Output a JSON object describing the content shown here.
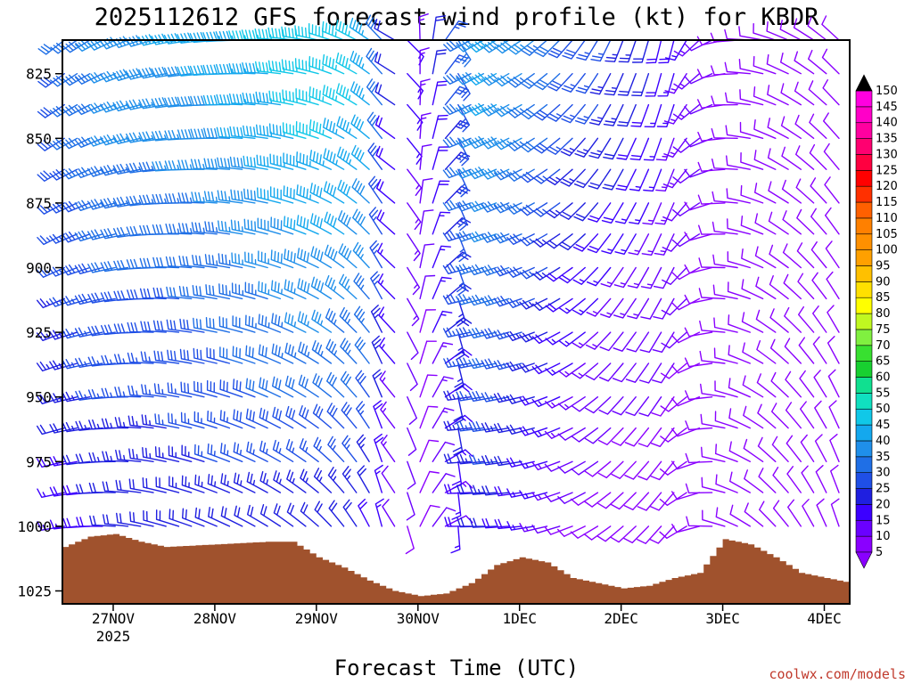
{
  "chart_data": {
    "type": "wind-barb-time-height",
    "title": "2025112612 GFS forecast wind profile (kt) for KBDR",
    "xlabel": "Forecast Time (UTC)",
    "ylabel": "",
    "credit": "coolwx.com/models",
    "xlim": [
      0,
      7.75
    ],
    "ylim": [
      1030,
      812
    ],
    "x_ticks": [
      {
        "value": 0.5,
        "label": "27NOV",
        "sublabel": "2025"
      },
      {
        "value": 1.5,
        "label": "28NOV"
      },
      {
        "value": 2.5,
        "label": "29NOV"
      },
      {
        "value": 3.5,
        "label": "30NOV"
      },
      {
        "value": 4.5,
        "label": "1DEC"
      },
      {
        "value": 5.5,
        "label": "2DEC"
      },
      {
        "value": 6.5,
        "label": "3DEC"
      },
      {
        "value": 7.5,
        "label": "4DEC"
      }
    ],
    "y_ticks": [
      {
        "value": 825,
        "label": "825"
      },
      {
        "value": 850,
        "label": "850"
      },
      {
        "value": 875,
        "label": "875"
      },
      {
        "value": 900,
        "label": "900"
      },
      {
        "value": 925,
        "label": "925"
      },
      {
        "value": 950,
        "label": "950"
      },
      {
        "value": 975,
        "label": "975"
      },
      {
        "value": 1000,
        "label": "1000"
      },
      {
        "value": 1025,
        "label": "1025"
      }
    ],
    "time_step_days": 0.125,
    "pressure_levels": [
      812,
      825,
      837,
      850,
      862,
      875,
      887,
      900,
      912,
      925,
      937,
      950,
      962,
      975,
      987,
      1000
    ],
    "wind_speed_profile": {
      "pressure": [
        812,
        850,
        900,
        950,
        1000
      ],
      "day": [
        0,
        0.5,
        1.0,
        1.5,
        2.0,
        2.5,
        3.0,
        3.25,
        3.5,
        3.75,
        4.0,
        4.25,
        4.5,
        4.75,
        5.0,
        5.5,
        6.0,
        6.5,
        7.0,
        7.5,
        7.75
      ],
      "kt": [
        [
          30,
          37,
          40,
          42,
          46,
          49,
          46,
          22,
          14,
          26,
          33,
          42,
          38,
          33,
          30,
          25,
          18,
          10,
          8,
          8,
          8
        ],
        [
          28,
          35,
          36,
          38,
          42,
          46,
          44,
          20,
          12,
          24,
          31,
          40,
          36,
          31,
          26,
          22,
          15,
          10,
          8,
          8,
          8
        ],
        [
          25,
          30,
          30,
          32,
          36,
          40,
          38,
          18,
          10,
          22,
          28,
          35,
          30,
          26,
          20,
          15,
          12,
          8,
          8,
          8,
          8
        ],
        [
          22,
          26,
          26,
          28,
          30,
          32,
          30,
          15,
          8,
          18,
          24,
          30,
          24,
          20,
          14,
          10,
          10,
          8,
          8,
          8,
          8
        ],
        [
          15,
          20,
          20,
          22,
          22,
          22,
          20,
          12,
          8,
          12,
          18,
          22,
          18,
          14,
          10,
          8,
          8,
          8,
          8,
          8,
          8
        ]
      ]
    },
    "wind_direction_profile": {
      "day": [
        0,
        1.0,
        2.0,
        2.5,
        3.0,
        3.25,
        3.5,
        3.75,
        4.0,
        4.5,
        5.0,
        5.5,
        6.0,
        6.5,
        7.0,
        7.75
      ],
      "deg": [
        245,
        270,
        285,
        295,
        315,
        340,
        10,
        30,
        255,
        250,
        235,
        215,
        205,
        270,
        300,
        330
      ]
    },
    "terrain_surface_pressure": {
      "day": [
        0,
        0.25,
        0.5,
        0.75,
        1.0,
        1.5,
        2.0,
        2.25,
        2.5,
        2.75,
        3.0,
        3.25,
        3.5,
        3.75,
        4.0,
        4.25,
        4.5,
        4.75,
        5.0,
        5.25,
        5.5,
        5.75,
        6.0,
        6.25,
        6.5,
        6.75,
        7.0,
        7.25,
        7.5,
        7.75
      ],
      "hPa": [
        1008,
        1004,
        1003,
        1006,
        1008,
        1007,
        1006,
        1006,
        1012,
        1016,
        1021,
        1025,
        1027,
        1026,
        1022,
        1015,
        1012,
        1014,
        1020,
        1022,
        1024,
        1023,
        1020,
        1018,
        1005,
        1007,
        1012,
        1018,
        1020,
        1022
      ]
    },
    "colorbar": {
      "label_unit": "kt",
      "levels": [
        5,
        10,
        15,
        20,
        25,
        30,
        35,
        40,
        45,
        50,
        55,
        60,
        65,
        70,
        75,
        80,
        85,
        90,
        95,
        100,
        105,
        110,
        115,
        120,
        125,
        130,
        135,
        140,
        145,
        150
      ],
      "colors": [
        "#8a00ff",
        "#6a00ff",
        "#3c00ff",
        "#1f1fe0",
        "#1f4fe6",
        "#1f6fe6",
        "#1f8fea",
        "#14a8ee",
        "#10c8e8",
        "#10e0c0",
        "#10e090",
        "#18d030",
        "#38e030",
        "#80f040",
        "#c0f820",
        "#ffff00",
        "#ffe000",
        "#ffc000",
        "#ffa000",
        "#ff9000",
        "#ff8000",
        "#ff6000",
        "#ff3000",
        "#ff0000",
        "#ff0040",
        "#ff0070",
        "#ff00a0",
        "#ff00c8",
        "#ff00e0",
        "#ff00ff"
      ],
      "under_color": "#8a00ff",
      "over_color": "#000000"
    },
    "terrain_color": "#a0522d"
  }
}
